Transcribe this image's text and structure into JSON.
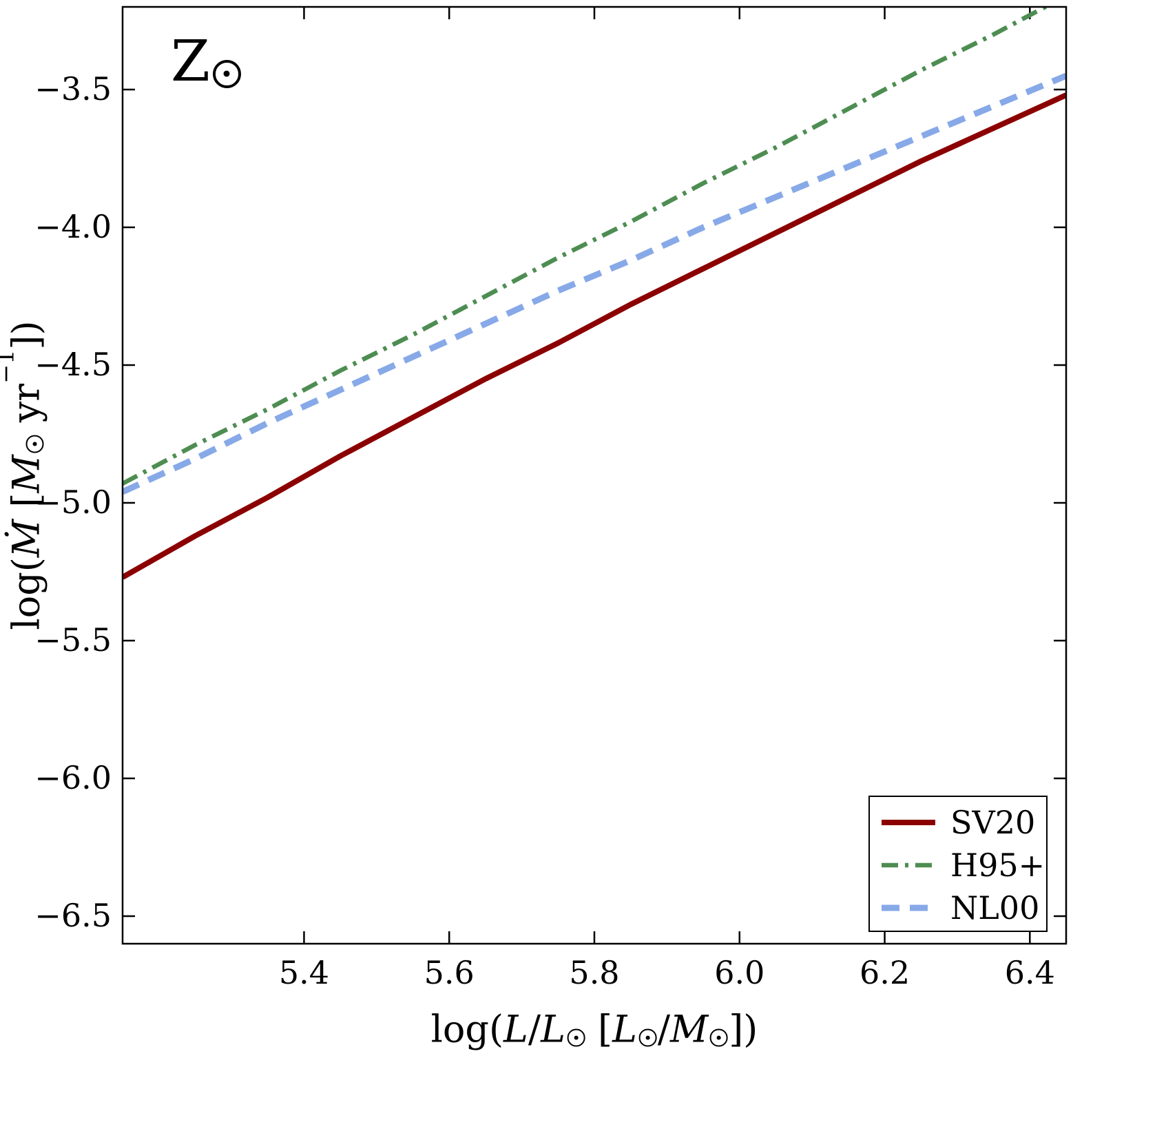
{
  "chart_data": {
    "type": "line",
    "title": "",
    "corner_label": {
      "text": "Z☉",
      "main": "Z"
    },
    "xlabel": {
      "text": "log(L/L☉ [L☉/M☉])",
      "parts": {
        "p_log": "log(",
        "p_l1": "L",
        "p_sl1": "/",
        "p_l2": "L",
        "p_open": " [",
        "p_l3": "L",
        "p_sl2": "/",
        "p_m": "M",
        "p_close": "])"
      }
    },
    "ylabel": {
      "text": "log(Ṁ [M☉ yr⁻¹])",
      "parts": {
        "p_log": "log(",
        "p_mdot": "Ṁ",
        "p_open": " [",
        "p_m": "M",
        "p_yr": " yr",
        "p_sup": "−1",
        "p_close": "])"
      }
    },
    "xlim": [
      5.15,
      6.45
    ],
    "ylim": [
      -6.6,
      -3.2
    ],
    "xticks": [
      5.4,
      5.6,
      5.8,
      6.0,
      6.2,
      6.4
    ],
    "yticks": [
      -3.5,
      -4.0,
      -4.5,
      -5.0,
      -5.5,
      -6.0,
      -6.5
    ],
    "grid": false,
    "background": "#ffffff",
    "axis_color": "#000000",
    "x": [
      5.15,
      5.25,
      5.35,
      5.45,
      5.55,
      5.65,
      5.75,
      5.85,
      5.95,
      6.05,
      6.15,
      6.25,
      6.35,
      6.45
    ],
    "series": [
      {
        "name": "SV20",
        "color": "#8b0000",
        "style": "solid",
        "stroke_width": 8,
        "values": [
          -5.27,
          -5.12,
          -4.98,
          -4.83,
          -4.69,
          -4.55,
          -4.42,
          -4.28,
          -4.15,
          -4.02,
          -3.89,
          -3.76,
          -3.64,
          -3.52
        ]
      },
      {
        "name": "H95+",
        "color": "#4e8d52",
        "style": "dashdot",
        "stroke_width": 6.5,
        "values": [
          -4.93,
          -4.79,
          -4.66,
          -4.52,
          -4.39,
          -4.25,
          -4.11,
          -3.98,
          -3.84,
          -3.71,
          -3.57,
          -3.43,
          -3.3,
          -3.16
        ]
      },
      {
        "name": "NL00",
        "color": "#87a9e8",
        "style": "dashed",
        "stroke_width": 9,
        "values": [
          -4.96,
          -4.84,
          -4.71,
          -4.59,
          -4.47,
          -4.35,
          -4.23,
          -4.12,
          -4.0,
          -3.89,
          -3.78,
          -3.67,
          -3.56,
          -3.45
        ]
      }
    ],
    "legend": {
      "position": "lower right",
      "entries": [
        "SV20",
        "H95+",
        "NL00"
      ]
    }
  }
}
